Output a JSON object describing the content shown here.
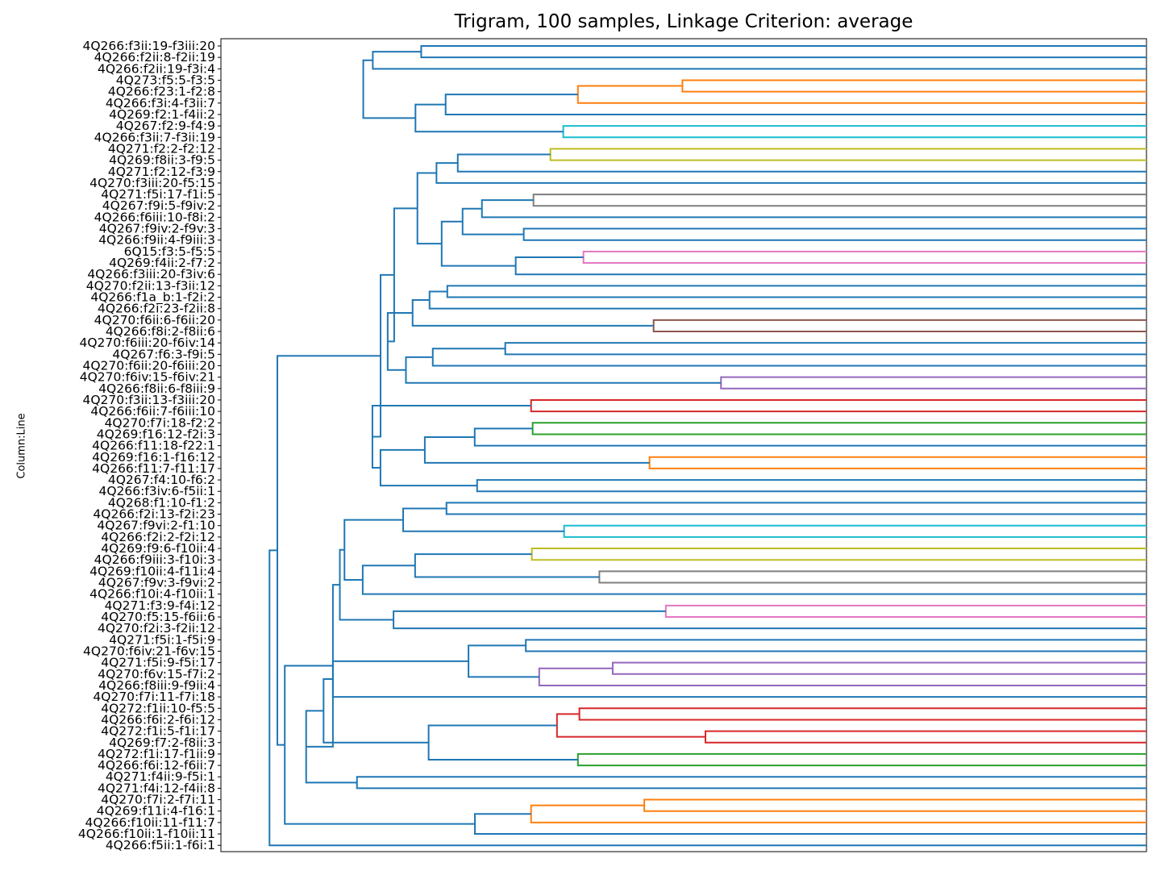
{
  "chart_data": {
    "type": "dendrogram",
    "orientation": "left",
    "title": "Trigram, 100 samples, Linkage Criterion: average",
    "ylabel": "Column:Line",
    "xlabel": "",
    "grid": false,
    "leaves": [
      "4Q266:f3ii:19-f3iii:20",
      "4Q266:f2ii:8-f2ii:19",
      "4Q266:f2ii:19-f3i:4",
      "4Q273:f5:5-f3:5",
      "4Q266:f23:1-f2:8",
      "4Q266:f3i:4-f3ii:7",
      "4Q269:f2:1-f4ii:2",
      "4Q267:f2:9-f4:9",
      "4Q266:f3ii:7-f3ii:19",
      "4Q271:f2:2-f2:12",
      "4Q269:f8ii:3-f9:5",
      "4Q271:f2:12-f3:9",
      "4Q270:f3iii:20-f5:15",
      "4Q271:f5i:17-f1i:5",
      "4Q267:f9i:5-f9iv:2",
      "4Q266:f6iii:10-f8i:2",
      "4Q267:f9iv:2-f9v:3",
      "4Q266:f9ii:4-f9iii:3",
      "6Q15:f3:5-f5:5",
      "4Q269:f4ii:2-f7:2",
      "4Q266:f3iii:20-f3iv:6",
      "4Q270:f2ii:13-f3ii:12",
      "4Q266:f1a_b:1-f2i:2",
      "4Q266:f2i:23-f2ii:8",
      "4Q270:f6ii:6-f6ii:20",
      "4Q266:f8i:2-f8ii:6",
      "4Q270:f6iii:20-f6iv:14",
      "4Q267:f6:3-f9i:5",
      "4Q270:f6ii:20-f6iii:20",
      "4Q270:f6iv:15-f6iv:21",
      "4Q266:f8ii:6-f8iii:9",
      "4Q270:f3ii:13-f3iii:20",
      "4Q266:f6ii:7-f6iii:10",
      "4Q270:f7i:18-f2:2",
      "4Q269:f16:12-f2i:3",
      "4Q266:f11:18-f22:1",
      "4Q269:f16:1-f16:12",
      "4Q266:f11:7-f11:17",
      "4Q267:f4:10-f6:2",
      "4Q266:f3iv:6-f5ii:1",
      "4Q268:f1:10-f1:2",
      "4Q266:f2i:13-f2i:23",
      "4Q267:f9vi:2-f1:10",
      "4Q266:f2i:2-f2i:12",
      "4Q269:f9:6-f10ii:4",
      "4Q266:f9iii:3-f10i:3",
      "4Q269:f10ii:4-f11i:4",
      "4Q267:f9v:3-f9vi:2",
      "4Q266:f10i:4-f10ii:1",
      "4Q271:f3:9-f4i:12",
      "4Q270:f5:15-f6ii:6",
      "4Q270:f2i:3-f2ii:12",
      "4Q271:f5i:1-f5i:9",
      "4Q270:f6iv:21-f6v:15",
      "4Q271:f5i:9-f5i:17",
      "4Q270:f6v:15-f7i:2",
      "4Q266:f8iii:9-f9ii:4",
      "4Q270:f7i:11-f7i:18",
      "4Q272:f1ii:10-f5:5",
      "4Q266:f6i:2-f6i:12",
      "4Q272:f1i:5-f1i:17",
      "4Q269:f7:2-f8ii:3",
      "4Q272:f1i:17-f1ii:9",
      "4Q266:f6i:12-f6ii:7",
      "4Q271:f4ii:9-f5i:1",
      "4Q271:f4i:12-f4ii:8",
      "4Q270:f7i:2-f7i:11",
      "4Q269:f11i:4-f16:1",
      "4Q266:f10ii:11-f11:7",
      "4Q266:f10ii:1-f10ii:11",
      "4Q266:f5ii:1-f6i:1"
    ],
    "links": [
      {
        "a": "0",
        "b": "1",
        "h": 0.7836,
        "color": "#1f77b4"
      },
      {
        "a": "n0",
        "b": "2",
        "h": 0.8359,
        "color": "#1f77b4"
      },
      {
        "a": "3",
        "b": "4",
        "h": 0.5014,
        "color": "#ff7f0e"
      },
      {
        "a": "n2",
        "b": "5",
        "h": 0.6143,
        "color": "#ff7f0e"
      },
      {
        "a": "n3",
        "b": "6",
        "h": 0.7572,
        "color": "#1f77b4"
      },
      {
        "a": "7",
        "b": "8",
        "h": 0.6301,
        "color": "#17becf"
      },
      {
        "a": "n4",
        "b": "n5",
        "h": 0.7898,
        "color": "#1f77b4"
      },
      {
        "a": "n1",
        "b": "n6",
        "h": 0.8462,
        "color": "#1f77b4"
      },
      {
        "a": "9",
        "b": "10",
        "h": 0.644,
        "color": "#bcbd22"
      },
      {
        "a": "n8",
        "b": "11",
        "h": 0.7441,
        "color": "#1f77b4"
      },
      {
        "a": "n9",
        "b": "12",
        "h": 0.7671,
        "color": "#1f77b4"
      },
      {
        "a": "13",
        "b": "14",
        "h": 0.6623,
        "color": "#7f7f7f"
      },
      {
        "a": "n11",
        "b": "15",
        "h": 0.718,
        "color": "#1f77b4"
      },
      {
        "a": "16",
        "b": "17",
        "h": 0.6728,
        "color": "#1f77b4"
      },
      {
        "a": "n12",
        "b": "n13",
        "h": 0.7389,
        "color": "#1f77b4"
      },
      {
        "a": "18",
        "b": "19",
        "h": 0.6083,
        "color": "#e377c2"
      },
      {
        "a": "n15",
        "b": "20",
        "h": 0.6815,
        "color": "#1f77b4"
      },
      {
        "a": "n14",
        "b": "n16",
        "h": 0.7615,
        "color": "#1f77b4"
      },
      {
        "a": "n10",
        "b": "n17",
        "h": 0.7877,
        "color": "#1f77b4"
      },
      {
        "a": "21",
        "b": "22",
        "h": 0.7554,
        "color": "#1f77b4"
      },
      {
        "a": "n19",
        "b": "23",
        "h": 0.7746,
        "color": "#1f77b4"
      },
      {
        "a": "24",
        "b": "25",
        "h": 0.5325,
        "color": "#8c564b"
      },
      {
        "a": "n20",
        "b": "n21",
        "h": 0.7929,
        "color": "#1f77b4"
      },
      {
        "a": "26",
        "b": "27",
        "h": 0.6928,
        "color": "#1f77b4"
      },
      {
        "a": "n23",
        "b": "28",
        "h": 0.7711,
        "color": "#1f77b4"
      },
      {
        "a": "29",
        "b": "30",
        "h": 0.4597,
        "color": "#9467bd"
      },
      {
        "a": "n24",
        "b": "n25",
        "h": 0.8001,
        "color": "#1f77b4"
      },
      {
        "a": "n22",
        "b": "n26",
        "h": 0.8198,
        "color": "#1f77b4"
      },
      {
        "a": "n18",
        "b": "n27",
        "h": 0.8128,
        "color": "#1f77b4"
      },
      {
        "a": "31",
        "b": "32",
        "h": 0.6649,
        "color": "#d62728"
      },
      {
        "a": "33",
        "b": "34",
        "h": 0.6632,
        "color": "#2ca02c"
      },
      {
        "a": "n30",
        "b": "35",
        "h": 0.7258,
        "color": "#1f77b4"
      },
      {
        "a": "36",
        "b": "37",
        "h": 0.5369,
        "color": "#ff7f0e"
      },
      {
        "a": "n31",
        "b": "n32",
        "h": 0.7797,
        "color": "#1f77b4"
      },
      {
        "a": "38",
        "b": "39",
        "h": 0.7232,
        "color": "#1f77b4"
      },
      {
        "a": "n33",
        "b": "n34",
        "h": 0.8276,
        "color": "#1f77b4"
      },
      {
        "a": "n29",
        "b": "n35",
        "h": 0.8363,
        "color": "#1f77b4"
      },
      {
        "a": "n28",
        "b": "n36",
        "h": 0.8275,
        "color": "#1f77b4"
      },
      {
        "a": "40",
        "b": "41",
        "h": 0.7563,
        "color": "#1f77b4"
      },
      {
        "a": "42",
        "b": "43",
        "h": 0.6292,
        "color": "#17becf"
      },
      {
        "a": "n38",
        "b": "n39",
        "h": 0.8031,
        "color": "#1f77b4"
      },
      {
        "a": "44",
        "b": "45",
        "h": 0.6641,
        "color": "#bcbd22"
      },
      {
        "a": "46",
        "b": "47",
        "h": 0.5911,
        "color": "#7f7f7f"
      },
      {
        "a": "n41",
        "b": "n42",
        "h": 0.7902,
        "color": "#1f77b4"
      },
      {
        "a": "n42b",
        "b": "48",
        "h": 0.7902,
        "color": "#1f77b4",
        "skip": true
      },
      {
        "a": "n43",
        "b": "48",
        "h": 0.8468,
        "color": "#1f77b4"
      },
      {
        "a": "49",
        "b": "50",
        "h": 0.5193,
        "color": "#e377c2"
      },
      {
        "a": "n46",
        "b": "51",
        "h": 0.8135,
        "color": "#1f77b4"
      },
      {
        "a": "n40",
        "b": "n45",
        "h": 0.8665,
        "color": "#1f77b4"
      },
      {
        "a": "n48",
        "b": "n47",
        "h": 0.8715,
        "color": "#1f77b4"
      },
      {
        "a": "52",
        "b": "53",
        "h": 0.6706,
        "color": "#1f77b4"
      },
      {
        "a": "54",
        "b": "55",
        "h": 0.5767,
        "color": "#9467bd"
      },
      {
        "a": "n51",
        "b": "56",
        "h": 0.6561,
        "color": "#9467bd"
      },
      {
        "a": "n50",
        "b": "n52",
        "h": 0.7325,
        "color": "#1f77b4"
      },
      {
        "a": "n53",
        "b": "57",
        "h": 0.879,
        "color": "#1f77b4"
      },
      {
        "a": "58",
        "b": "59",
        "h": 0.6127,
        "color": "#d62728"
      },
      {
        "a": "60",
        "b": "61",
        "h": 0.4765,
        "color": "#d62728"
      },
      {
        "a": "n55",
        "b": "n56",
        "h": 0.6369,
        "color": "#d62728"
      },
      {
        "a": "n57",
        "b": "62",
        "h": 0.6153,
        "color": "#2ca02c",
        "skip": true
      },
      {
        "a": "62",
        "b": "63",
        "h": 0.6143,
        "color": "#2ca02c"
      },
      {
        "a": "n57",
        "b": "n59",
        "h": 0.7756,
        "color": "#1f77b4"
      },
      {
        "a": "n54",
        "b": "n60",
        "h": 0.8891,
        "color": "#1f77b4"
      },
      {
        "a": "64",
        "b": "65",
        "h": 0.853,
        "color": "#1f77b4"
      },
      {
        "a": "n49",
        "b": "n61",
        "h": 0.8891,
        "color": "#1f77b4",
        "skip": true
      },
      {
        "a": "66",
        "b": "67",
        "h": 0.5426,
        "color": "#ff7f0e"
      },
      {
        "a": "n64",
        "b": "68",
        "h": 0.6649,
        "color": "#ff7f0e"
      },
      {
        "a": "n65",
        "b": "69",
        "h": 0.7256,
        "color": "#1f77b4"
      },
      {
        "a": "n61",
        "b": "n62",
        "h": 0.9079,
        "color": "#1f77b4"
      },
      {
        "a": "n49",
        "b": "n67",
        "h": 0.879,
        "color": "#1f77b4"
      },
      {
        "a": "n68",
        "b": "n66",
        "h": 0.931,
        "color": "#1f77b4"
      },
      {
        "a": "n37",
        "b": "n69",
        "h": 0.939,
        "color": "#1f77b4"
      },
      {
        "a": "n70",
        "b": "70",
        "h": 0.9475,
        "color": "#1f77b4"
      }
    ],
    "xlim": [
      0,
      1.0
    ],
    "colors": {
      "above_threshold": "#1f77b4",
      "clusters": [
        "#ff7f0e",
        "#2ca02c",
        "#d62728",
        "#9467bd",
        "#8c564b",
        "#e377c2",
        "#7f7f7f",
        "#bcbd22",
        "#17becf"
      ]
    }
  }
}
